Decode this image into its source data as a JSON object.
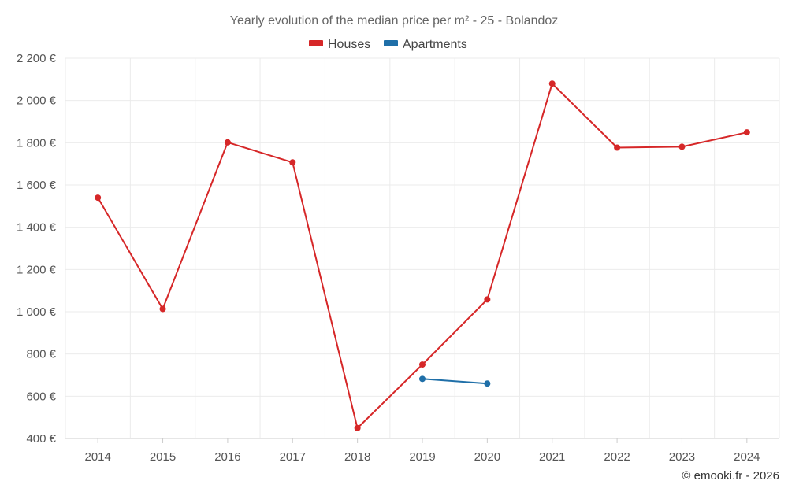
{
  "chart_data": {
    "type": "line",
    "title": "Yearly evolution of the median price per m² - 25 - Bolandoz",
    "categories": [
      "2014",
      "2015",
      "2016",
      "2017",
      "2018",
      "2019",
      "2020",
      "2021",
      "2022",
      "2023",
      "2024"
    ],
    "ylim": [
      400,
      2200
    ],
    "yticks": [
      400,
      600,
      800,
      1000,
      1200,
      1400,
      1600,
      1800,
      2000,
      2200
    ],
    "ytick_labels": [
      "400 €",
      "600 €",
      "800 €",
      "1 000 €",
      "1 200 €",
      "1 400 €",
      "1 600 €",
      "1 800 €",
      "2 000 €",
      "2 200 €"
    ],
    "grid": true,
    "legend_position": "top-center",
    "series": [
      {
        "name": "Houses",
        "color": "#d62728",
        "values": [
          1540,
          1013,
          1802,
          1707,
          449,
          750,
          1058,
          2080,
          1777,
          1781,
          1849
        ]
      },
      {
        "name": "Apartments",
        "color": "#1f6fa8",
        "values": [
          null,
          null,
          null,
          null,
          null,
          682,
          660,
          null,
          null,
          null,
          null
        ]
      }
    ]
  },
  "credit": "© emooki.fr - 2026"
}
